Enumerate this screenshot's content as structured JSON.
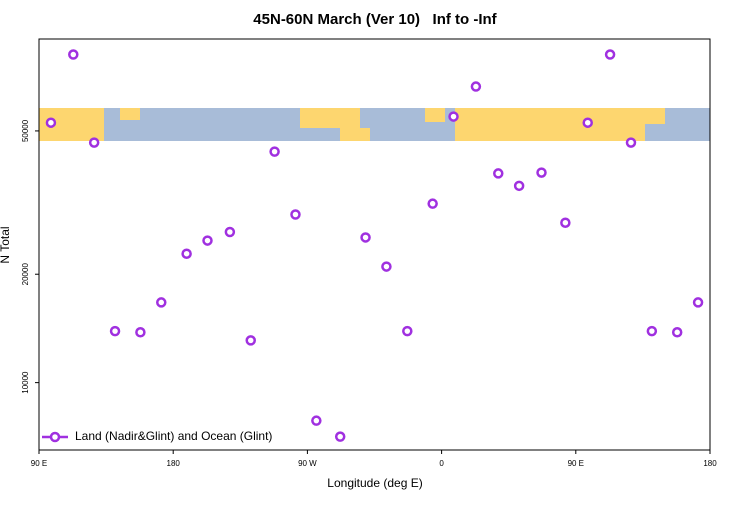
{
  "chart_data": {
    "type": "scatter",
    "title": "45N-60N March (Ver 10)   Inf to -Inf",
    "x_label": "Longitude (deg E)",
    "y_label": "N Total",
    "log_y": true,
    "legend": "lower left",
    "xlim": [
      90,
      540
    ],
    "xticks": [
      {
        "value": 90,
        "label": "90 E"
      },
      180,
      {
        "value": 270,
        "label": "90 W"
      },
      {
        "value": 360,
        "label": "0"
      },
      {
        "value": 450,
        "label": "90 E"
      },
      {
        "value": 540,
        "label": "180"
      }
    ],
    "ylim": [
      6500,
      90000
    ],
    "yticks": [
      10000,
      20000,
      50000
    ],
    "series": [
      {
        "name": "Land (Nadir&Glint) and Ocean (Glint)",
        "color": "#a030e0",
        "x": [
          98,
          113,
          127,
          141,
          158,
          172,
          189,
          203,
          218,
          232,
          248,
          262,
          276,
          292,
          309,
          323,
          337,
          354,
          368,
          383,
          398,
          412,
          427,
          443,
          458,
          473,
          487,
          501,
          518,
          532
        ],
        "values": [
          52700,
          81500,
          46400,
          13900,
          13800,
          16700,
          22800,
          24800,
          26200,
          13100,
          43800,
          29300,
          7840,
          7080,
          25300,
          21000,
          13900,
          31400,
          54800,
          66400,
          38100,
          35200,
          38300,
          27800,
          52700,
          81500,
          46400,
          13900,
          13800,
          16700
        ]
      }
    ]
  }
}
